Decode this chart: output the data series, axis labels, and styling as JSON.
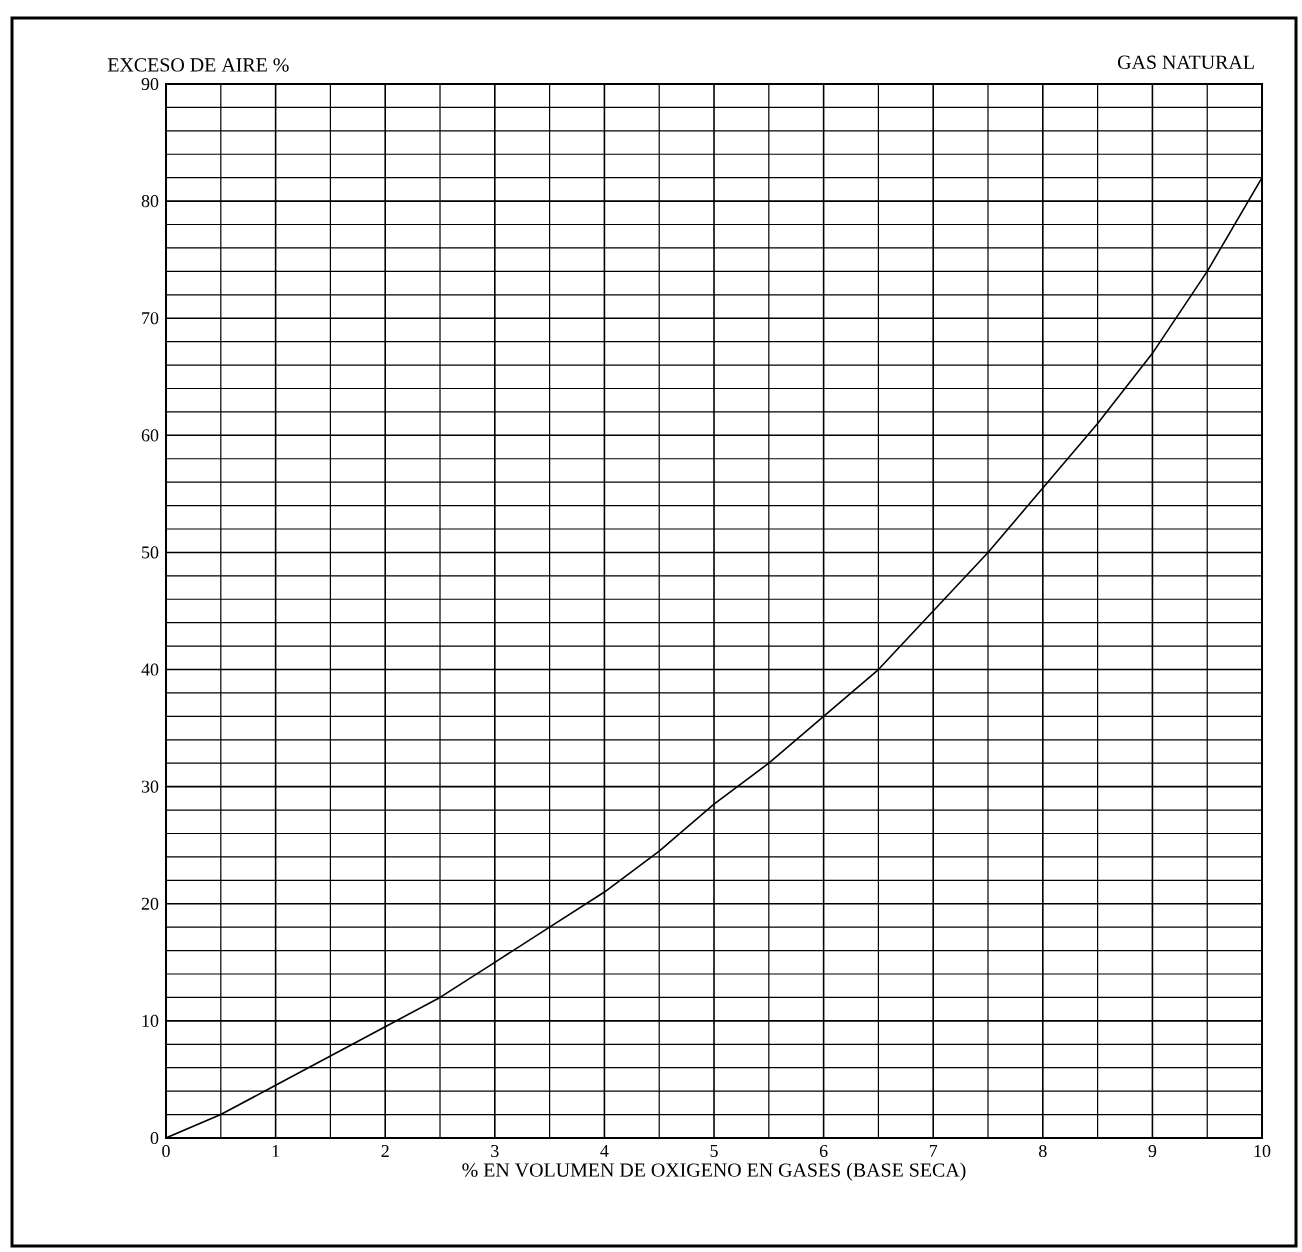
{
  "chart_data": {
    "type": "line",
    "title": "GAS NATURAL",
    "ylabel": "EXCESO DE AIRE %",
    "xlabel": "% EN VOLUMEN DE OXIGENO EN GASES (BASE SECA)",
    "x": [
      0,
      0.5,
      1,
      1.5,
      2,
      2.5,
      3,
      3.5,
      4,
      4.5,
      5,
      5.5,
      6,
      6.5,
      7,
      7.5,
      8,
      8.5,
      9,
      9.5,
      10
    ],
    "series": [
      {
        "color": "#000000",
        "values": [
          0,
          2,
          4.5,
          7,
          9.5,
          12,
          15,
          18,
          21,
          24.5,
          28.5,
          32,
          36,
          40,
          45,
          50,
          55.5,
          61,
          67,
          74,
          82
        ]
      }
    ],
    "xlim": [
      0,
      10
    ],
    "ylim": [
      0,
      90
    ],
    "xticks": [
      0,
      1,
      2,
      3,
      4,
      5,
      6,
      7,
      8,
      9,
      10
    ],
    "yticks": [
      0,
      10,
      20,
      30,
      40,
      50,
      60,
      70,
      80,
      90
    ],
    "grid": true,
    "marker": "none",
    "line_style": "solid"
  }
}
